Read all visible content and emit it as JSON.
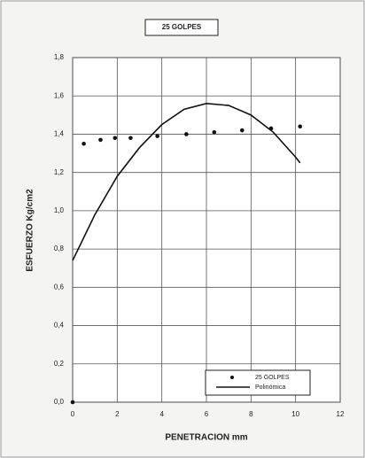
{
  "chart_data": {
    "type": "scatter",
    "title": "25 GOLPES",
    "x_label": "PENETRACION mm",
    "y_label": "ESFUERZO Kg/cm2",
    "xlim": [
      0,
      12
    ],
    "xticks": [
      0,
      2,
      4,
      6,
      8,
      10,
      12
    ],
    "ylim": [
      0,
      1.8
    ],
    "yticks": [
      {
        "value": 0,
        "label": "0,0"
      },
      {
        "value": 0.2,
        "label": "0,2"
      },
      {
        "value": 0.4,
        "label": "0,4"
      },
      {
        "value": 0.6,
        "label": "0,6"
      },
      {
        "value": 0.8,
        "label": "0,8"
      },
      {
        "value": 1.0,
        "label": "1,0"
      },
      {
        "value": 1.2,
        "label": "1,2"
      },
      {
        "value": 1.4,
        "label": "1,4"
      },
      {
        "value": 1.6,
        "label": "1,6"
      },
      {
        "value": 1.8,
        "label": "1,8"
      }
    ],
    "grid": true,
    "legend": "lower right",
    "series": [
      {
        "name": "25 GOLPES",
        "color": "#111111",
        "style": "points",
        "x": [
          0,
          0.5,
          1.25,
          1.9,
          2.6,
          3.8,
          5.1,
          6.35,
          7.6,
          8.9,
          10.2
        ],
        "values": [
          0,
          1.35,
          1.37,
          1.38,
          1.38,
          1.39,
          1.4,
          1.41,
          1.42,
          1.43,
          1.44
        ]
      },
      {
        "name": "Polinómica",
        "color": "#111111",
        "style": "line",
        "x": [
          0,
          1,
          2,
          3,
          4,
          5,
          6,
          7,
          8,
          9,
          10,
          10.2
        ],
        "values": [
          0.74,
          0.98,
          1.18,
          1.33,
          1.45,
          1.53,
          1.56,
          1.55,
          1.5,
          1.41,
          1.28,
          1.25
        ]
      }
    ]
  }
}
